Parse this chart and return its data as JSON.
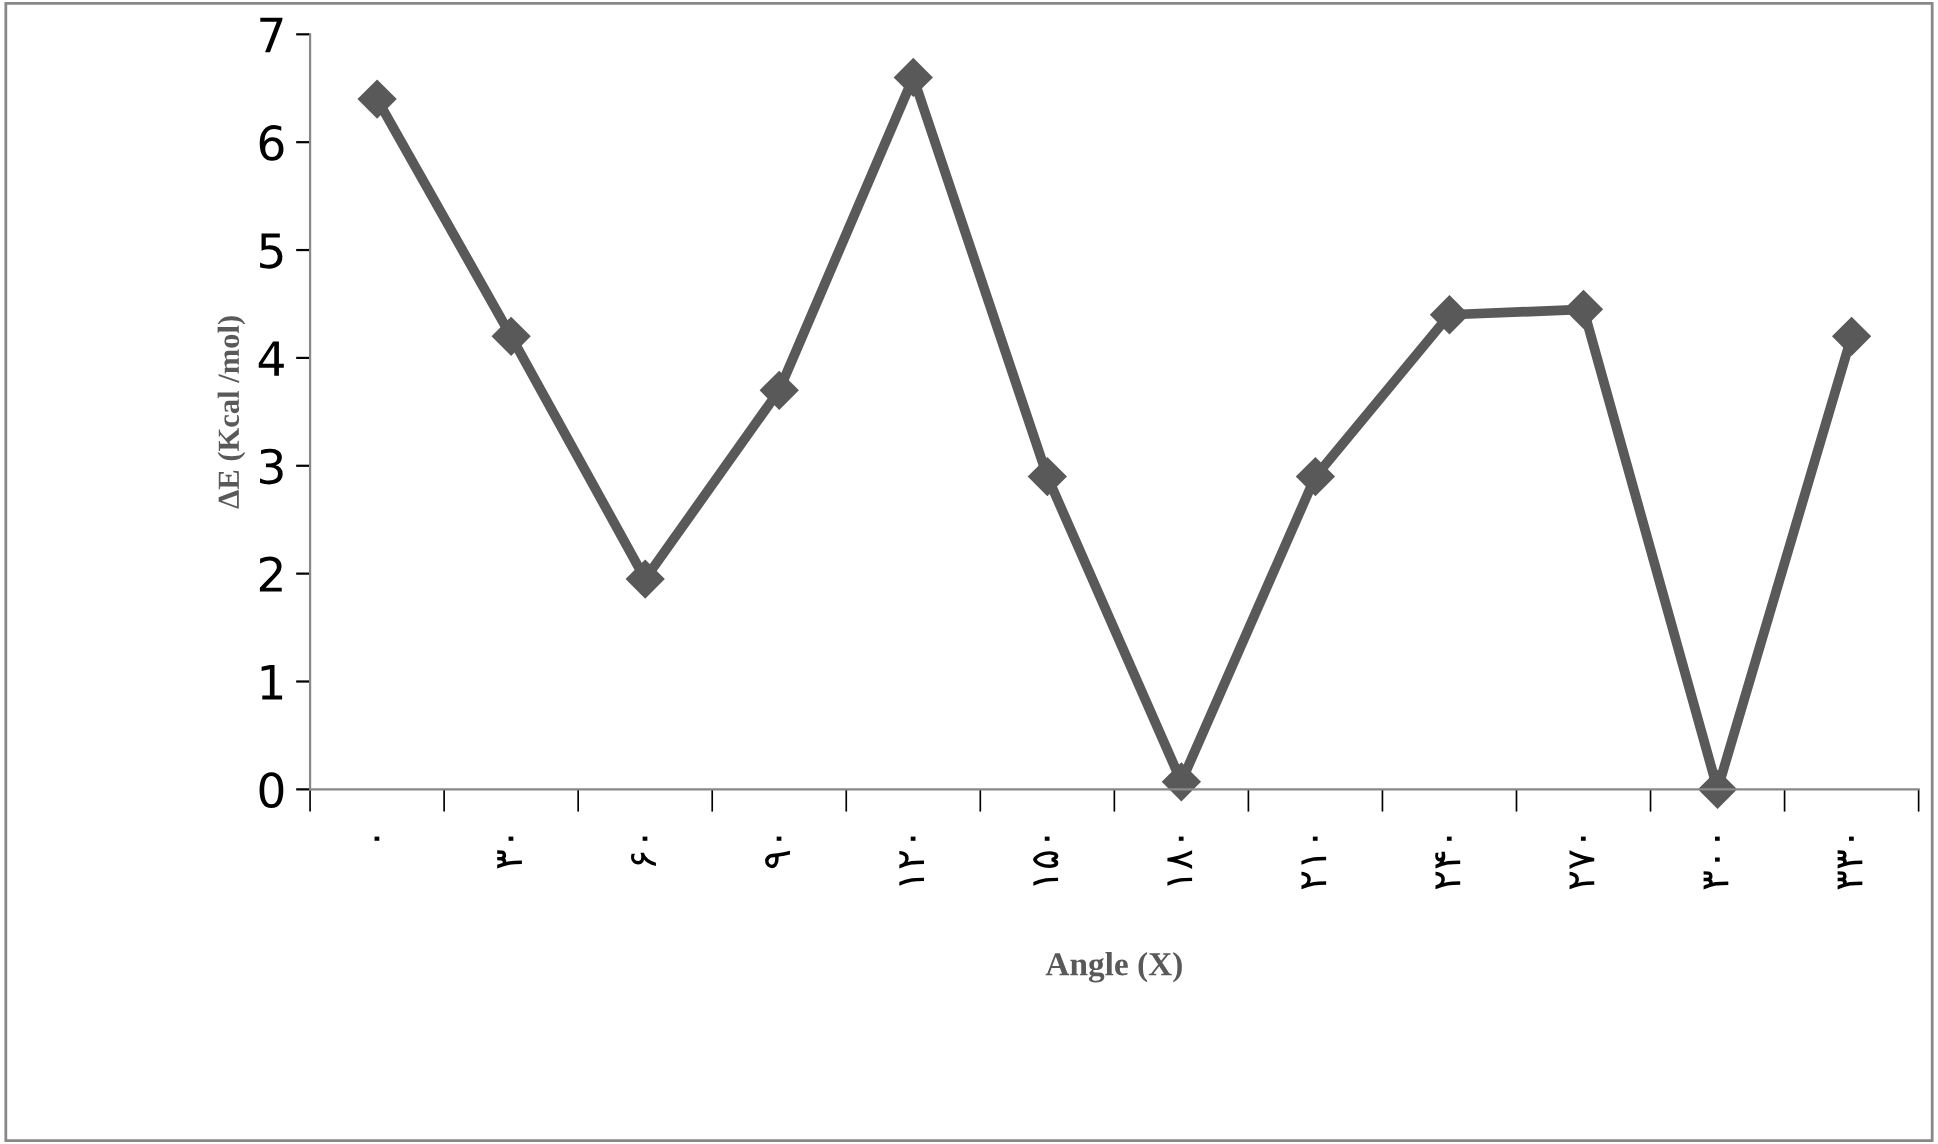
{
  "chart_data": {
    "type": "line",
    "xlabel": "Angle (X)",
    "ylabel": "ΔE (Kcal /mol)",
    "categories": [
      "۰",
      "۳۰",
      "۶۰",
      "۹۰",
      "۱۲۰",
      "۱۵۰",
      "۱۸۰",
      "۲۱۰",
      "۲۴۰",
      "۲۷۰",
      "۳۰۰",
      "۳۳۰"
    ],
    "series": [
      {
        "color": "#595959",
        "values": [
          6.4,
          4.2,
          1.95,
          3.7,
          6.6,
          2.9,
          0.07,
          2.9,
          4.4,
          4.45,
          0,
          4.2
        ]
      }
    ],
    "ylim": [
      0,
      7
    ],
    "yticks": [
      0,
      1,
      2,
      3,
      4,
      5,
      6,
      7
    ],
    "marker": "diamond",
    "line_style": "solid"
  }
}
